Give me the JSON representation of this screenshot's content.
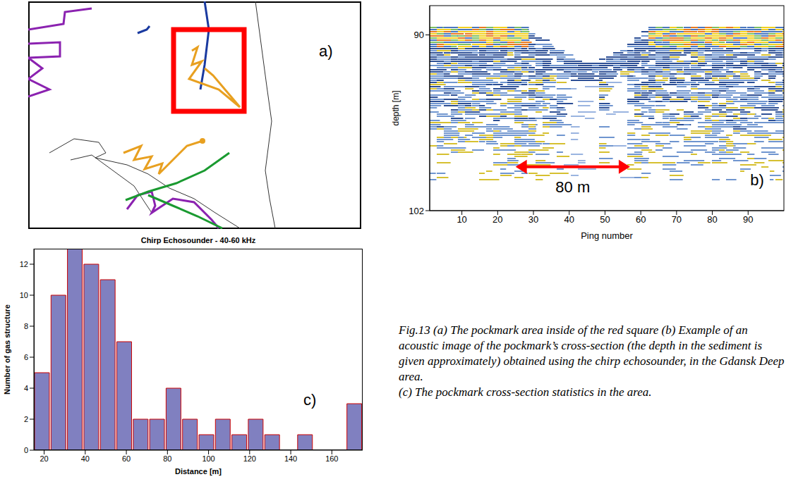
{
  "map": {
    "label": "a)"
  },
  "chart_data": [
    {
      "type": "image",
      "label": "b)",
      "xlabel": "Ping number",
      "ylabel": "depth [m]",
      "xlim": [
        1,
        100
      ],
      "ylim": [
        88,
        102
      ],
      "xticks": [
        10,
        20,
        30,
        40,
        50,
        60,
        70,
        80,
        90
      ],
      "yticks": [
        90,
        102
      ],
      "annotation": {
        "text": "80 m",
        "x": [
          25,
          57
        ],
        "y": 99,
        "color": "#ff0000"
      }
    },
    {
      "type": "histogram",
      "label": "c)",
      "title": "Chirp Echosounder - 40-60 kHz",
      "xlabel": "Distance [m]",
      "ylabel": "Number of gas structure",
      "bins": [
        15,
        23,
        31,
        39,
        47,
        55,
        63,
        71,
        79,
        87,
        95,
        103,
        111,
        119,
        127,
        135,
        143,
        151,
        159,
        167,
        175
      ],
      "values": [
        5,
        10,
        13,
        12,
        11,
        7,
        2,
        2,
        4,
        2,
        1,
        2,
        1,
        2,
        1,
        0,
        1,
        0,
        0,
        3
      ],
      "color": "#8080c0",
      "xlim": [
        15,
        175
      ],
      "ylim": [
        0,
        13
      ],
      "xticks": [
        20,
        40,
        60,
        80,
        100,
        120,
        140,
        160
      ],
      "yticks": [
        0,
        2,
        4,
        6,
        8,
        10,
        12
      ],
      "grid": false
    }
  ],
  "caption": {
    "text": "Fig.13 (a) The pockmark area inside of the red square (b) Example of an acoustic image of the pockmark’s cross-section (the depth in the sediment is given approximately) obtained using the chirp echosounder, in the Gdansk Deep area.",
    "statistics": "(c) The pockmark cross-section statistics in the area."
  }
}
